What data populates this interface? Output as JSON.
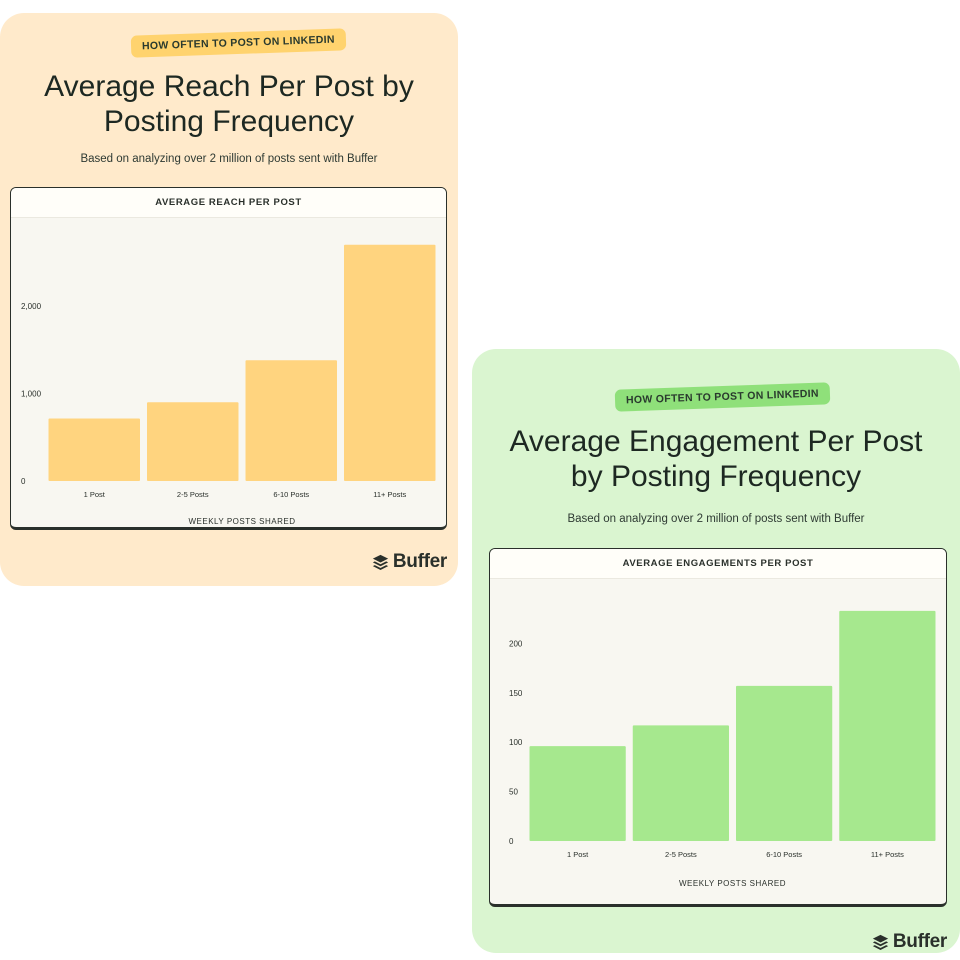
{
  "cards": [
    {
      "tag": "HOW OFTEN TO POST ON LINKEDIN",
      "title_line1": "Average Reach Per Post by",
      "title_line2": "Posting Frequency",
      "subtitle": "Based on analyzing over 2 million of posts sent with Buffer",
      "panel_title": "AVERAGE REACH PER POST",
      "brand": "Buffer"
    },
    {
      "tag": "HOW OFTEN TO POST ON LINKEDIN",
      "title_line1": "Average Engagement Per Post",
      "title_line2": "by Posting Frequency",
      "subtitle": "Based on analyzing over 2 million of posts sent with Buffer",
      "panel_title": "AVERAGE ENGAGEMENTS PER POST",
      "brand": "Buffer"
    }
  ],
  "colors": {
    "reach_bg": "#ffeacb",
    "reach_bar": "#ffd47f",
    "eng_bg": "#daf5d0",
    "eng_bar": "#a6e88e"
  },
  "chart_data": [
    {
      "type": "bar",
      "title": "AVERAGE REACH PER POST",
      "xlabel": "WEEKLY POSTS SHARED",
      "ylabel": "",
      "categories": [
        "1 Post",
        "2-5 Posts",
        "6-10 Posts",
        "11+ Posts"
      ],
      "values": [
        715,
        900,
        1380,
        2700
      ],
      "ylim": [
        0,
        2800
      ],
      "yticks": [
        0,
        1000,
        2000
      ],
      "ytick_labels": [
        "0",
        "1,000",
        "2,000"
      ],
      "grid": false,
      "color": "#ffd47f"
    },
    {
      "type": "bar",
      "title": "AVERAGE ENGAGEMENTS PER POST",
      "xlabel": "WEEKLY POSTS SHARED",
      "ylabel": "",
      "categories": [
        "1 Post",
        "2-5 Posts",
        "6-10 Posts",
        "11+ Posts"
      ],
      "values": [
        96,
        117,
        157,
        233
      ],
      "ylim": [
        0,
        245
      ],
      "yticks": [
        0,
        50,
        100,
        150,
        200
      ],
      "ytick_labels": [
        "0",
        "50",
        "100",
        "150",
        "200"
      ],
      "grid": false,
      "color": "#a6e88e"
    }
  ]
}
